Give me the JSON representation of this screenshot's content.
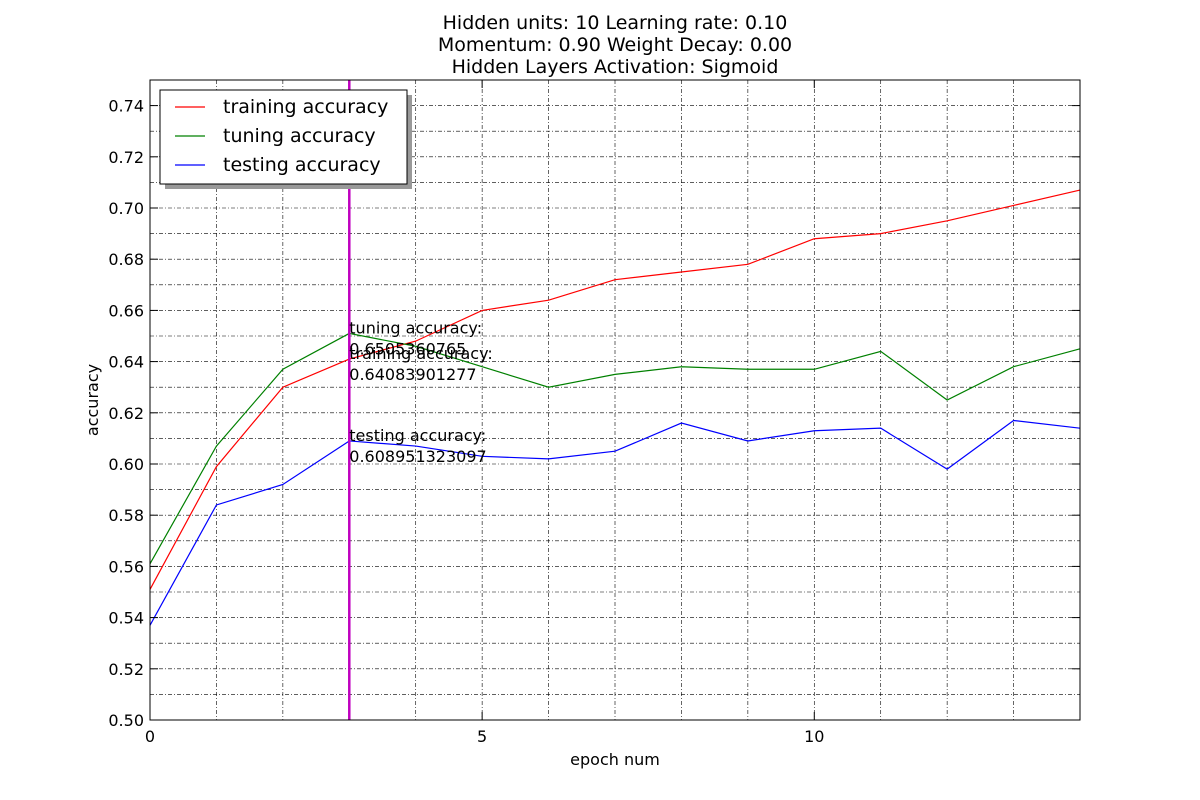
{
  "chart_data": {
    "type": "line",
    "title_lines": [
      "Hidden units: 10 Learning rate: 0.10",
      "Momentum: 0.90 Weight Decay: 0.00",
      "Hidden Layers Activation: Sigmoid"
    ],
    "xlabel": "epoch num",
    "ylabel": "accuracy",
    "xlim": [
      0,
      14
    ],
    "ylim": [
      0.5,
      0.75
    ],
    "x_ticks": [
      0,
      5,
      10
    ],
    "x_tick_labels": [
      "0",
      "5",
      "10"
    ],
    "y_ticks": [
      0.5,
      0.52,
      0.54,
      0.56,
      0.58,
      0.6,
      0.62,
      0.64,
      0.66,
      0.68,
      0.7,
      0.72,
      0.74
    ],
    "y_tick_labels": [
      "0.50",
      "0.52",
      "0.54",
      "0.56",
      "0.58",
      "0.60",
      "0.62",
      "0.64",
      "0.66",
      "0.68",
      "0.70",
      "0.72",
      "0.74"
    ],
    "grid": true,
    "legend_position": "top-left",
    "x": [
      0,
      1,
      2,
      3,
      4,
      5,
      6,
      7,
      8,
      9,
      10,
      11,
      12,
      13,
      14
    ],
    "series": [
      {
        "name": "training accuracy",
        "color": "#ff0000",
        "values": [
          0.551,
          0.599,
          0.63,
          0.641,
          0.648,
          0.66,
          0.664,
          0.672,
          0.675,
          0.678,
          0.688,
          0.69,
          0.695,
          0.701,
          0.707
        ]
      },
      {
        "name": "tuning accuracy",
        "color": "#008000",
        "values": [
          0.561,
          0.607,
          0.637,
          0.651,
          0.646,
          0.638,
          0.63,
          0.635,
          0.638,
          0.637,
          0.637,
          0.644,
          0.625,
          0.638,
          0.645
        ]
      },
      {
        "name": "testing accuracy",
        "color": "#0000ff",
        "values": [
          0.537,
          0.584,
          0.592,
          0.609,
          0.607,
          0.603,
          0.602,
          0.605,
          0.616,
          0.609,
          0.613,
          0.614,
          0.598,
          0.617,
          0.614
        ]
      }
    ],
    "marker_line": {
      "x": 3,
      "color": "#bf00bf"
    },
    "annotations": [
      {
        "lines": [
          "tuning accuracy:",
          "0.6505360765"
        ],
        "x": 3,
        "y": 0.651
      },
      {
        "lines": [
          "training accuracy:",
          "0.64083901277"
        ],
        "x": 3,
        "y": 0.641
      },
      {
        "lines": [
          "testing accuracy:",
          "0.608951323097"
        ],
        "x": 3,
        "y": 0.609
      }
    ]
  }
}
